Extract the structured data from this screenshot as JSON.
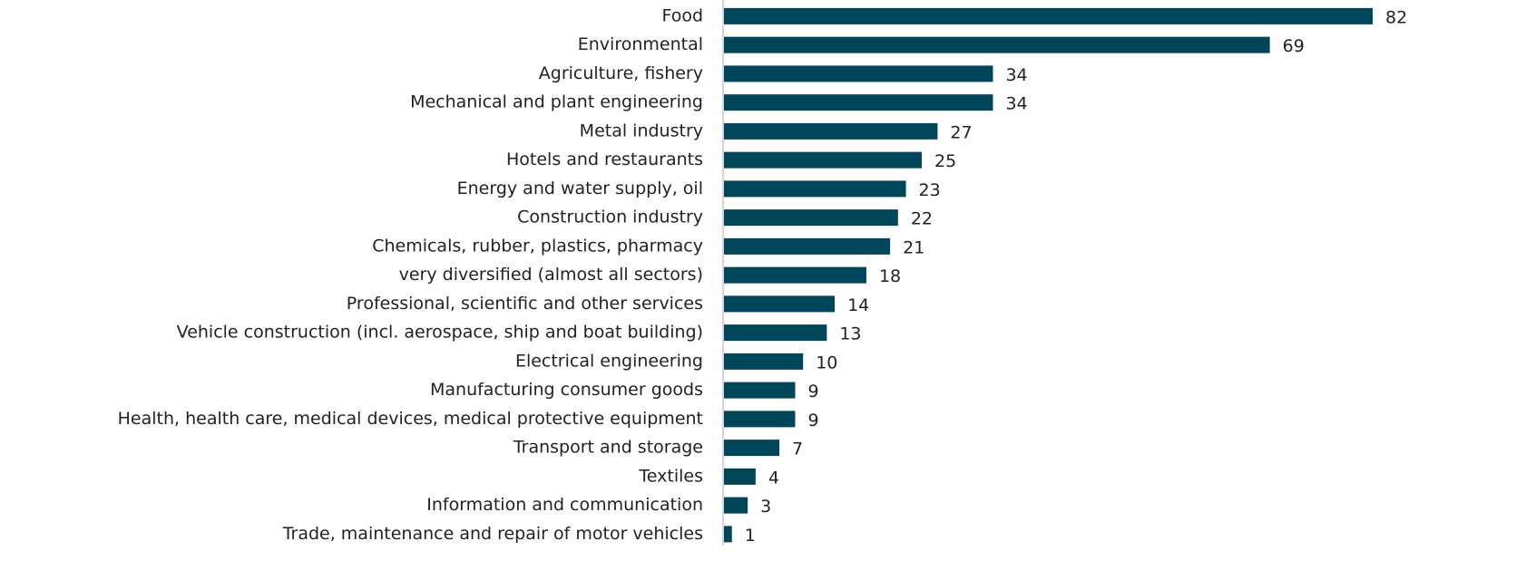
{
  "chart_data": {
    "type": "bar",
    "orientation": "horizontal",
    "categories": [
      "Food",
      "Environmental",
      "Agriculture, fishery",
      "Mechanical and plant engineering",
      "Metal industry",
      "Hotels and restaurants",
      "Energy and water supply, oil",
      "Construction industry",
      "Chemicals, rubber, plastics, pharmacy",
      "very diversified (almost all sectors)",
      "Professional, scientific and other services",
      "Vehicle construction (incl. aerospace, ship and boat building)",
      "Electrical engineering",
      "Manufacturing consumer goods",
      "Health, health care, medical devices, medical protective equipment",
      "Transport and storage",
      "Textiles",
      "Information and communication",
      "Trade, maintenance and repair of motor vehicles"
    ],
    "values": [
      82,
      69,
      34,
      34,
      27,
      25,
      23,
      22,
      21,
      18,
      14,
      13,
      10,
      9,
      9,
      7,
      4,
      3,
      1
    ],
    "color": "#00465a"
  }
}
